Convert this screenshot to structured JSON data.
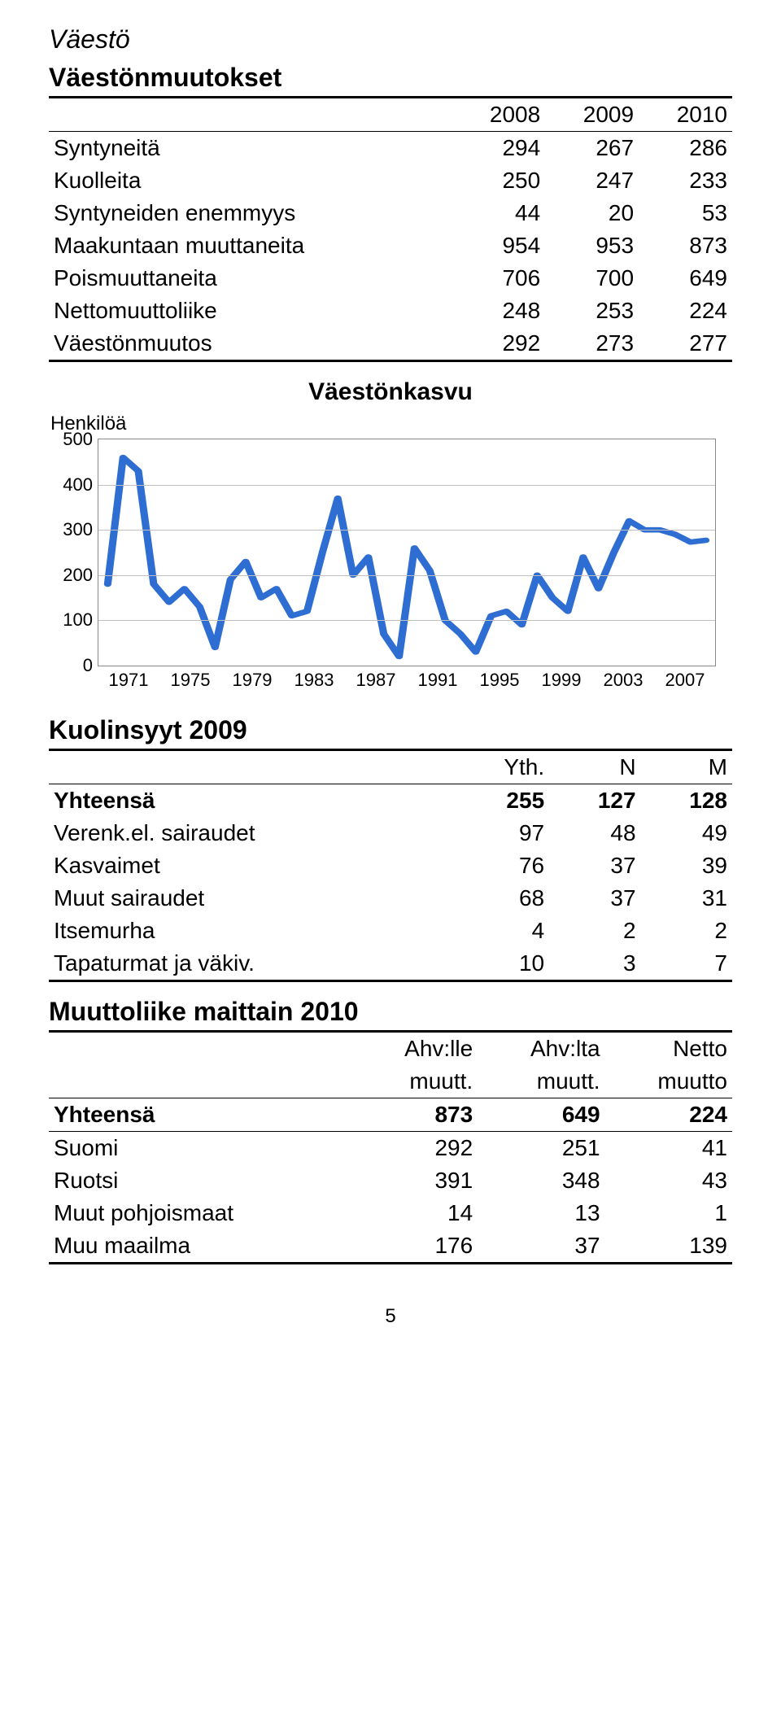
{
  "section_title": "Väestö",
  "pop_changes": {
    "title": "Väestönmuutokset",
    "years": [
      "2008",
      "2009",
      "2010"
    ],
    "rows": [
      {
        "label": "Syntyneitä",
        "v": [
          "294",
          "267",
          "286"
        ]
      },
      {
        "label": "Kuolleita",
        "v": [
          "250",
          "247",
          "233"
        ]
      },
      {
        "label": "Syntyneiden enemmyys",
        "v": [
          "44",
          "20",
          "53"
        ]
      },
      {
        "label": "Maakuntaan muuttaneita",
        "v": [
          "954",
          "953",
          "873"
        ]
      },
      {
        "label": "Poismuuttaneita",
        "v": [
          "706",
          "700",
          "649"
        ]
      },
      {
        "label": "Nettomuuttoliike",
        "v": [
          "248",
          "253",
          "224"
        ]
      },
      {
        "label": "Väestönmuutos",
        "v": [
          "292",
          "273",
          "277"
        ]
      }
    ]
  },
  "chart": {
    "title": "Väestönkasvu",
    "ylabel": "Henkilöä",
    "ylim": [
      0,
      500
    ],
    "yticks": [
      0,
      100,
      200,
      300,
      400,
      500
    ],
    "xlabels": [
      "1971",
      "1975",
      "1979",
      "1983",
      "1987",
      "1991",
      "1995",
      "1999",
      "2003",
      "2007"
    ],
    "grid_color": "#c0c0c0",
    "line_color": "#2e6dd2",
    "line_width": 6,
    "background": "#ffffff",
    "data": [
      180,
      460,
      430,
      180,
      140,
      170,
      130,
      40,
      190,
      230,
      150,
      170,
      110,
      120,
      250,
      370,
      200,
      240,
      70,
      20,
      260,
      210,
      100,
      70,
      30,
      110,
      120,
      90,
      200,
      150,
      120,
      240,
      170,
      250,
      320,
      300,
      300,
      290,
      273,
      277
    ]
  },
  "causes": {
    "title": "Kuolinsyyt 2009",
    "headers": [
      "Yth.",
      "N",
      "M"
    ],
    "rows": [
      {
        "label": "Yhteensä",
        "bold": true,
        "v": [
          "255",
          "127",
          "128"
        ]
      },
      {
        "label": "Verenk.el. sairaudet",
        "v": [
          "97",
          "48",
          "49"
        ]
      },
      {
        "label": "Kasvaimet",
        "v": [
          "76",
          "37",
          "39"
        ]
      },
      {
        "label": "Muut sairaudet",
        "v": [
          "68",
          "37",
          "31"
        ]
      },
      {
        "label": "Itsemurha",
        "v": [
          "4",
          "2",
          "2"
        ]
      },
      {
        "label": "Tapaturmat ja väkiv.",
        "v": [
          "10",
          "3",
          "7"
        ]
      }
    ]
  },
  "migration": {
    "title": "Muuttoliike maittain 2010",
    "headers": {
      "h1": [
        "Ahv:lle",
        "Ahv:lta",
        "Netto"
      ],
      "h2": [
        "muutt.",
        "muutt.",
        "muutto"
      ]
    },
    "rows": [
      {
        "label": "Yhteensä",
        "bold": true,
        "v": [
          "873",
          "649",
          "224"
        ]
      },
      {
        "label": "Suomi",
        "v": [
          "292",
          "251",
          "41"
        ]
      },
      {
        "label": "Ruotsi",
        "v": [
          "391",
          "348",
          "43"
        ]
      },
      {
        "label": "Muut pohjoismaat",
        "v": [
          "14",
          "13",
          "1"
        ]
      },
      {
        "label": "Muu maailma",
        "v": [
          "176",
          "37",
          "139"
        ]
      }
    ]
  },
  "page_number": "5"
}
